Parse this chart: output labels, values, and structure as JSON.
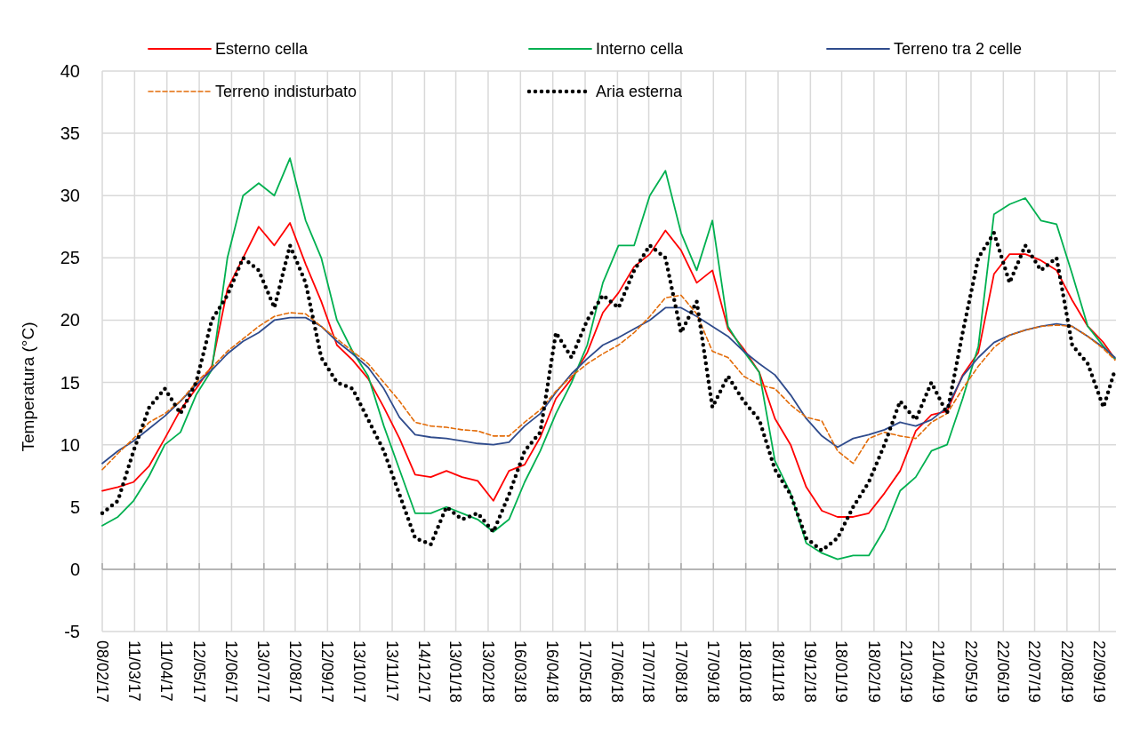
{
  "chart_data": {
    "type": "line",
    "ylabel": "Temperatura (°C)",
    "legend": "top",
    "grid": true,
    "xlim": [
      "2017-02-08",
      "2019-10-08"
    ],
    "ylim": [
      -5,
      40
    ],
    "yticks": [
      -5,
      0,
      5,
      10,
      15,
      20,
      25,
      30,
      35,
      40
    ],
    "xticks": [
      {
        "value": "2017-02-08",
        "label": "08/02/17"
      },
      {
        "value": "2017-03-11",
        "label": "11/03/17"
      },
      {
        "value": "2017-04-11",
        "label": "11/04/17"
      },
      {
        "value": "2017-05-12",
        "label": "12/05/17"
      },
      {
        "value": "2017-06-12",
        "label": "12/06/17"
      },
      {
        "value": "2017-07-13",
        "label": "13/07/17"
      },
      {
        "value": "2017-08-12",
        "label": "12/08/17"
      },
      {
        "value": "2017-09-12",
        "label": "12/09/17"
      },
      {
        "value": "2017-10-13",
        "label": "13/10/17"
      },
      {
        "value": "2017-11-13",
        "label": "13/11/17"
      },
      {
        "value": "2017-12-14",
        "label": "14/12/17"
      },
      {
        "value": "2018-01-13",
        "label": "13/01/18"
      },
      {
        "value": "2018-02-13",
        "label": "13/02/18"
      },
      {
        "value": "2018-03-16",
        "label": "16/03/18"
      },
      {
        "value": "2018-04-16",
        "label": "16/04/18"
      },
      {
        "value": "2018-05-17",
        "label": "17/05/18"
      },
      {
        "value": "2018-06-17",
        "label": "17/06/18"
      },
      {
        "value": "2018-07-17",
        "label": "17/07/18"
      },
      {
        "value": "2018-08-17",
        "label": "17/08/18"
      },
      {
        "value": "2018-09-17",
        "label": "17/09/18"
      },
      {
        "value": "2018-10-18",
        "label": "18/10/18"
      },
      {
        "value": "2018-11-18",
        "label": "18/11/18"
      },
      {
        "value": "2018-12-19",
        "label": "19/12/18"
      },
      {
        "value": "2019-01-18",
        "label": "18/01/19"
      },
      {
        "value": "2019-02-18",
        "label": "18/02/19"
      },
      {
        "value": "2019-03-21",
        "label": "21/03/19"
      },
      {
        "value": "2019-04-21",
        "label": "21/04/19"
      },
      {
        "value": "2019-05-22",
        "label": "22/05/19"
      },
      {
        "value": "2019-06-22",
        "label": "22/06/19"
      },
      {
        "value": "2019-07-22",
        "label": "22/07/19"
      },
      {
        "value": "2019-08-22",
        "label": "22/08/19"
      },
      {
        "value": "2019-09-22",
        "label": "22/09/19"
      }
    ],
    "x": [
      "2017-02-08",
      "2017-02-23",
      "2017-03-10",
      "2017-03-25",
      "2017-04-09",
      "2017-04-24",
      "2017-05-09",
      "2017-05-24",
      "2017-06-08",
      "2017-06-23",
      "2017-07-08",
      "2017-07-23",
      "2017-08-07",
      "2017-08-22",
      "2017-09-06",
      "2017-09-21",
      "2017-10-06",
      "2017-10-21",
      "2017-11-05",
      "2017-11-20",
      "2017-12-05",
      "2017-12-20",
      "2018-01-04",
      "2018-01-19",
      "2018-02-03",
      "2018-02-18",
      "2018-03-05",
      "2018-03-20",
      "2018-04-04",
      "2018-04-19",
      "2018-05-04",
      "2018-05-19",
      "2018-06-03",
      "2018-06-18",
      "2018-07-03",
      "2018-07-18",
      "2018-08-02",
      "2018-08-17",
      "2018-09-01",
      "2018-09-16",
      "2018-10-01",
      "2018-10-16",
      "2018-10-31",
      "2018-11-15",
      "2018-11-30",
      "2018-12-15",
      "2018-12-30",
      "2019-01-14",
      "2019-01-29",
      "2019-02-13",
      "2019-02-28",
      "2019-03-15",
      "2019-03-30",
      "2019-04-14",
      "2019-04-29",
      "2019-05-14",
      "2019-05-29",
      "2019-06-13",
      "2019-06-28",
      "2019-07-13",
      "2019-07-28",
      "2019-08-12",
      "2019-08-27",
      "2019-09-11",
      "2019-09-26",
      "2019-10-07"
    ],
    "series": [
      {
        "name": "Esterno cella",
        "color": "#ff0000",
        "line_style": "solid",
        "values": [
          6.3,
          6.6,
          7.0,
          8.3,
          10.5,
          12.8,
          14.5,
          16.3,
          22.5,
          25.0,
          27.5,
          26.0,
          27.8,
          24.5,
          21.5,
          18.0,
          16.8,
          15.3,
          13.0,
          10.5,
          7.6,
          7.4,
          7.9,
          7.4,
          7.1,
          5.5,
          7.9,
          8.4,
          10.6,
          13.7,
          15.3,
          17.4,
          20.6,
          22.2,
          24.3,
          25.3,
          27.2,
          25.6,
          23.0,
          24.0,
          19.3,
          17.7,
          15.8,
          12.1,
          10.0,
          6.6,
          4.7,
          4.2,
          4.2,
          4.5,
          6.1,
          7.9,
          11.1,
          12.4,
          12.7,
          15.6,
          17.4,
          23.7,
          25.3,
          25.3,
          24.8,
          24.0,
          21.6,
          19.5,
          18.2,
          16.9
        ]
      },
      {
        "name": "Interno cella",
        "color": "#00b050",
        "line_style": "solid",
        "values": [
          3.5,
          4.2,
          5.5,
          7.5,
          10.0,
          11.0,
          14.0,
          16.0,
          25.0,
          30.0,
          31.0,
          30.0,
          33.0,
          28.0,
          25.0,
          20.0,
          17.5,
          15.5,
          11.5,
          8.0,
          4.5,
          4.5,
          5.0,
          4.5,
          4.0,
          3.0,
          4.0,
          7.0,
          9.5,
          12.5,
          15.0,
          18.0,
          23.0,
          26.0,
          26.0,
          30.0,
          32.0,
          27.0,
          24.0,
          28.0,
          19.5,
          17.5,
          15.8,
          8.7,
          6.1,
          2.1,
          1.3,
          0.8,
          1.1,
          1.1,
          3.2,
          6.3,
          7.4,
          9.5,
          10.0,
          13.7,
          17.9,
          28.5,
          29.3,
          29.8,
          28.0,
          27.7,
          23.7,
          19.5,
          17.9,
          16.9
        ]
      },
      {
        "name": "Terreno tra 2 celle",
        "color": "#2f4b8c",
        "line_style": "solid",
        "values": [
          8.5,
          9.5,
          10.3,
          11.3,
          12.3,
          13.5,
          14.8,
          16.0,
          17.3,
          18.3,
          19.0,
          20.0,
          20.2,
          20.2,
          19.5,
          18.3,
          17.3,
          16.2,
          14.5,
          12.2,
          10.8,
          10.6,
          10.5,
          10.3,
          10.1,
          10.0,
          10.2,
          11.5,
          12.5,
          14.2,
          15.7,
          16.9,
          18.0,
          18.6,
          19.3,
          20.0,
          21.0,
          21.0,
          20.3,
          19.5,
          18.7,
          17.5,
          16.5,
          15.6,
          14.0,
          12.1,
          10.7,
          9.8,
          10.5,
          10.8,
          11.2,
          11.8,
          11.5,
          12.0,
          13.0,
          15.5,
          17.0,
          18.2,
          18.8,
          19.2,
          19.5,
          19.7,
          19.5,
          18.7,
          17.8,
          17.0
        ]
      },
      {
        "name": "Terreno indisturbato",
        "color": "#e36c09",
        "line_style": "dashed",
        "values": [
          8.0,
          9.3,
          10.5,
          11.8,
          12.5,
          13.5,
          15.0,
          16.2,
          17.5,
          18.5,
          19.5,
          20.3,
          20.6,
          20.5,
          19.5,
          18.5,
          17.5,
          16.5,
          15.0,
          13.5,
          11.8,
          11.5,
          11.4,
          11.2,
          11.1,
          10.7,
          10.7,
          11.8,
          12.8,
          14.3,
          15.5,
          16.5,
          17.3,
          18.0,
          19.0,
          20.3,
          21.8,
          22.0,
          20.5,
          17.5,
          17.0,
          15.5,
          14.8,
          14.5,
          13.2,
          12.2,
          11.9,
          9.5,
          8.5,
          10.5,
          11.0,
          10.7,
          10.5,
          11.8,
          12.5,
          14.5,
          16.3,
          17.8,
          18.8,
          19.2,
          19.5,
          19.6,
          19.5,
          18.7,
          17.7,
          16.8
        ]
      },
      {
        "name": "Aria esterna",
        "color": "#000000",
        "line_style": "dotted",
        "values": [
          4.5,
          5.5,
          9.5,
          13.0,
          14.5,
          12.5,
          15.0,
          20.0,
          22.0,
          25.0,
          24.0,
          21.0,
          26.0,
          23.0,
          17.0,
          15.0,
          14.5,
          12.0,
          9.5,
          6.0,
          2.5,
          2.0,
          5.0,
          4.0,
          4.5,
          3.0,
          6.0,
          9.5,
          11.0,
          19.0,
          17.0,
          20.0,
          22.0,
          21.0,
          24.0,
          26.0,
          25.0,
          19.0,
          21.5,
          13.0,
          15.5,
          13.5,
          12.0,
          8.0,
          6.0,
          2.5,
          1.5,
          2.5,
          5.0,
          7.0,
          10.0,
          13.5,
          12.0,
          15.0,
          12.5,
          19.0,
          25.0,
          27.0,
          23.0,
          26.0,
          24.0,
          25.0,
          18.0,
          16.5,
          13.0,
          16.0
        ]
      }
    ]
  }
}
